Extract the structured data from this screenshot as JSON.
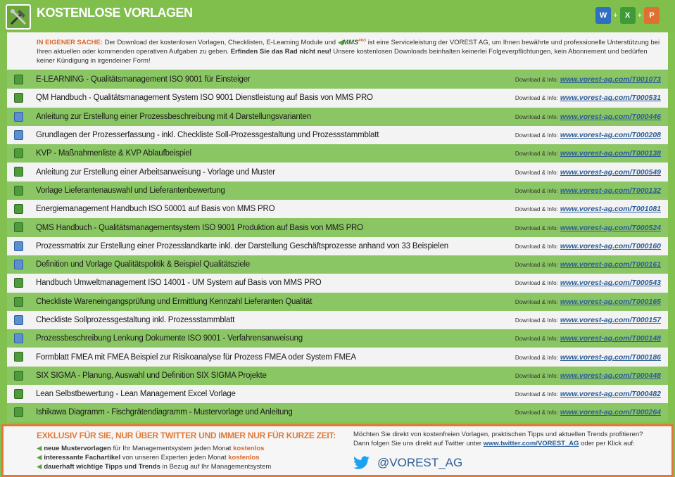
{
  "header": {
    "title": "KOSTENLOSE VORLAGEN",
    "apps": [
      {
        "icon": "word-icon",
        "letter": "W",
        "color": "#2f6fc0"
      },
      {
        "icon": "excel-icon",
        "letter": "X",
        "color": "#3f9a3a"
      },
      {
        "icon": "powerpoint-icon",
        "letter": "P",
        "color": "#e07030"
      }
    ],
    "plus": "+"
  },
  "intro": {
    "lead": "IN EIGENER SACHE:",
    "text1": " Der Download der kostenlosen Vorlagen, Checklisten, E-Learning Module und ",
    "mms": "MMS",
    "mms_sup": "PRO",
    "text2": " ist eine Serviceleistung der VOREST AG, um Ihnen bewährte und professionelle Unterstützung bei Ihren aktuellen oder kommenden operativen Aufgaben zu geben. ",
    "bold": "Erfinden Sie das Rad nicht neu!",
    "text3": " Unsere kostenlosen Downloads beinhalten keinerlei Folgeverpflichtungen, kein Abonnement und bedürfen keiner Kündigung in irgendeiner Form!"
  },
  "download_label": "Download & Info:",
  "rows": [
    {
      "title": "E-LEARNING - Qualitätsmanagement ISO 9001 für Einsteiger",
      "link": "www.vorest-ag.com/T001073",
      "icon": "excel"
    },
    {
      "title": "QM Handbuch - Qualitätsmanagement System ISO 9001 Dienstleistung auf Basis von MMS PRO",
      "link": "www.vorest-ag.com/T000531",
      "icon": "excel"
    },
    {
      "title": "Anleitung zur Erstellung einer Prozessbeschreibung mit 4 Darstellungsvarianten",
      "link": "www.vorest-ag.com/T000446",
      "icon": "word"
    },
    {
      "title": "Grundlagen der Prozesserfassung - inkl. Checkliste Soll-Prozessgestaltung und Prozessstammblatt",
      "link": "www.vorest-ag.com/T000208",
      "icon": "word"
    },
    {
      "title": "KVP - Maßnahmenliste & KVP Ablaufbeispiel",
      "link": "www.vorest-ag.com/T000138",
      "icon": "excel"
    },
    {
      "title": "Anleitung zur Erstellung einer Arbeitsanweisung - Vorlage und Muster",
      "link": "www.vorest-ag.com/T000549",
      "icon": "excel"
    },
    {
      "title": "Vorlage Lieferantenauswahl und Lieferantenbewertung",
      "link": "www.vorest-ag.com/T000132",
      "icon": "excel"
    },
    {
      "title": "Energiemanagement Handbuch ISO 50001 auf Basis von MMS PRO",
      "link": "www.vorest-ag.com/T001081",
      "icon": "excel"
    },
    {
      "title": "QMS Handbuch - Qualitätsmanagementsystem ISO 9001 Produktion auf Basis von MMS PRO",
      "link": "www.vorest-ag.com/T000524",
      "icon": "excel"
    },
    {
      "title": "Prozessmatrix zur Erstellung einer Prozesslandkarte inkl. der Darstellung Geschäftsprozesse anhand von 33 Beispielen",
      "link": "www.vorest-ag.com/T000160",
      "icon": "word"
    },
    {
      "title": "Definition und Vorlage Qualitätspolitik & Beispiel Qualitätsziele",
      "link": "www.vorest-ag.com/T000161",
      "icon": "word"
    },
    {
      "title": "Handbuch Umweltmanagement ISO 14001 - UM System auf Basis von MMS PRO",
      "link": "www.vorest-ag.com/T000543",
      "icon": "excel"
    },
    {
      "title": "Checkliste Wareneingangsprüfung und Ermittlung Kennzahl Lieferanten Qualität",
      "link": "www.vorest-ag.com/T000165",
      "icon": "excel"
    },
    {
      "title": "Checkliste Sollprozessgestaltung inkl. Prozessstammblatt",
      "link": "www.vorest-ag.com/T000157",
      "icon": "word"
    },
    {
      "title": "Prozessbeschreibung Lenkung Dokumente ISO 9001 - Verfahrensanweisung",
      "link": "www.vorest-ag.com/T000148",
      "icon": "word"
    },
    {
      "title": "Formblatt FMEA mit FMEA Beispiel zur Risikoanalyse für Prozess FMEA oder System FMEA",
      "link": "www.vorest-ag.com/T000186",
      "icon": "excel"
    },
    {
      "title": "SIX SIGMA - Planung, Auswahl und Definition SIX SIGMA Projekte",
      "link": "www.vorest-ag.com/T000448",
      "icon": "excel"
    },
    {
      "title": "Lean Selbstbewertung - Lean Management Excel Vorlage",
      "link": "www.vorest-ag.com/T000482",
      "icon": "excel"
    },
    {
      "title": "Ishikawa Diagramm - Fischgrätendiagramm - Mustervorlage und Anleitung",
      "link": "www.vorest-ag.com/T000264",
      "icon": "excel"
    }
  ],
  "bottom": {
    "headline": "EXKLUSIV FÜR SIE, NUR ÜBER TWITTER UND IMMER NUR FÜR KURZE ZEIT:",
    "bullets": [
      {
        "bold": "neue Mustervorlagen",
        "text": " für Ihr Managementsystem jeden Monat ",
        "orange": "kostenlos"
      },
      {
        "bold": "interessante Fachartikel",
        "text": " von unseren Experten jeden Monat ",
        "orange": "kostenlos"
      },
      {
        "bold": "dauerhaft wichtige Tipps und Trends",
        "text": " in Bezug auf Ihr Managementsystem",
        "orange": ""
      }
    ],
    "right1": "Möchten Sie direkt von kostenfreien Vorlagen, praktischen Tipps und aktuellen Trends profitieren?",
    "right2a": "Dann folgen Sie uns direkt auf Twitter unter ",
    "right2link": "www.twitter.com/VOREST_AG",
    "right2b": " oder per Klick auf:",
    "handle": "@VOREST_AG"
  },
  "colors": {
    "green": "#80bf4c",
    "row_green": "#8bc664",
    "orange": "#df7b3a",
    "link": "#2b5c97",
    "twitter": "#1da1f2"
  }
}
